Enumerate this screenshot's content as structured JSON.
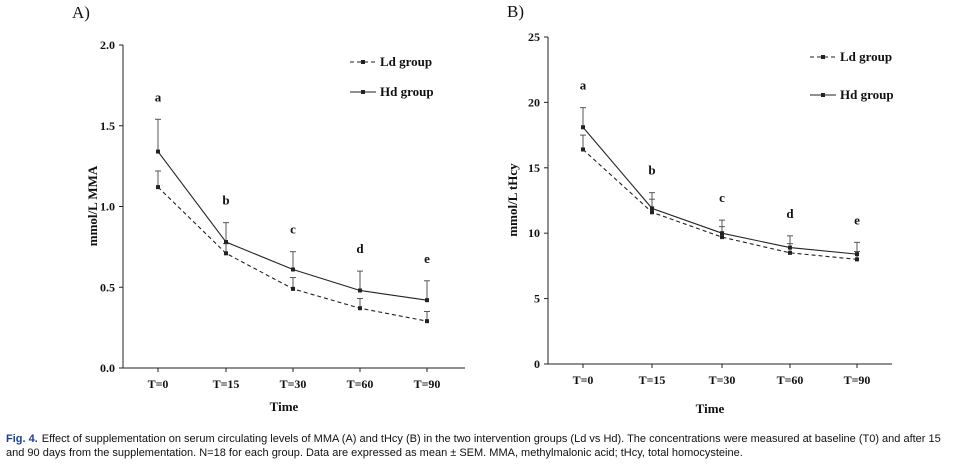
{
  "chart_data": [
    {
      "panel": "A)",
      "type": "line",
      "xlabel": "Time",
      "ylabel": "mmol/L MMA",
      "categories": [
        "T=0",
        "T=15",
        "T=30",
        "T=60",
        "T=90"
      ],
      "ylim": [
        0.0,
        2.0
      ],
      "yticks": [
        "0.0",
        "0.5",
        "1.0",
        "1.5",
        "2.0"
      ],
      "series": [
        {
          "name": "Ld group",
          "style": "dashed",
          "values": [
            1.12,
            0.71,
            0.49,
            0.37,
            0.29
          ],
          "sem": [
            0.1,
            0.06,
            0.07,
            0.06,
            0.06
          ]
        },
        {
          "name": "Hd group",
          "style": "solid",
          "values": [
            1.34,
            0.78,
            0.61,
            0.48,
            0.42
          ],
          "sem": [
            0.2,
            0.12,
            0.11,
            0.12,
            0.12
          ]
        }
      ],
      "annotations": [
        "a",
        "b",
        "c",
        "d",
        "e"
      ],
      "legend_position": "top-right"
    },
    {
      "panel": "B)",
      "type": "line",
      "xlabel": "Time",
      "ylabel": "mmol/L tHcy",
      "categories": [
        "T=0",
        "T=15",
        "T=30",
        "T=60",
        "T=90"
      ],
      "ylim": [
        0,
        25
      ],
      "yticks": [
        "0",
        "5",
        "10",
        "15",
        "20",
        "25"
      ],
      "series": [
        {
          "name": "Ld group",
          "style": "dashed",
          "values": [
            16.4,
            11.6,
            9.7,
            8.5,
            8.0
          ],
          "sem": [
            1.1,
            1.0,
            0.8,
            0.7,
            0.6
          ]
        },
        {
          "name": "Hd group",
          "style": "solid",
          "values": [
            18.1,
            11.9,
            10.0,
            8.9,
            8.4
          ],
          "sem": [
            1.5,
            1.2,
            1.0,
            0.9,
            0.9
          ]
        }
      ],
      "annotations": [
        "a",
        "b",
        "c",
        "d",
        "e"
      ],
      "legend_position": "top-right"
    }
  ],
  "caption": {
    "label": "Fig. 4.",
    "text": "Effect of supplementation on serum circulating levels of MMA (A) and tHcy (B) in the two intervention groups (Ld vs Hd). The concentrations were measured at baseline (T0) and after 15 and 90 days from the supplementation. N=18 for each group. Data are expressed as mean ± SEM. MMA, methylmalonic acid; tHcy, total homocysteine."
  },
  "colors": {
    "line": "#222222",
    "text": "#111111",
    "figlabel": "#1b3f8f"
  }
}
